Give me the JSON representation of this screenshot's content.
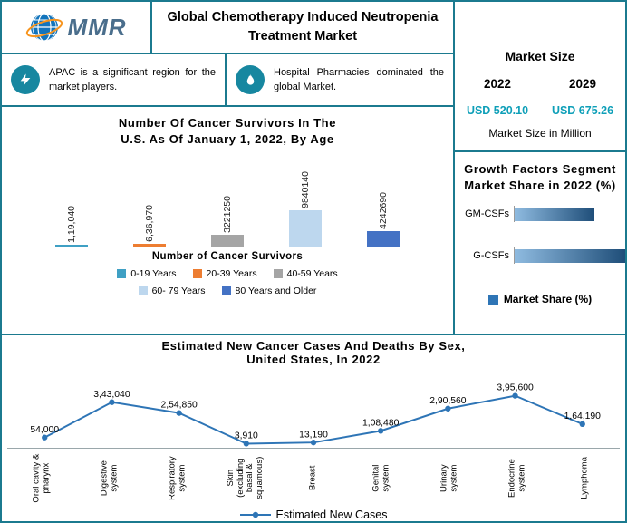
{
  "header": {
    "logo_text": "MMR",
    "title_line1": "Global Chemotherapy Induced Neutropenia",
    "title_line2": "Treatment Market"
  },
  "facts": [
    {
      "icon": "lightning-icon",
      "text": "APAC is a significant region for the market players."
    },
    {
      "icon": "flame-icon",
      "text": "Hospital Pharmacies dominated the global Market."
    }
  ],
  "market_size": {
    "title": "Market Size",
    "year_left": "2022",
    "year_right": "2029",
    "value_left": "USD 520.10",
    "value_right": "USD 675.26",
    "note": "Market Size in Million",
    "accent_color": "#0E9FB8"
  },
  "chart_data": [
    {
      "id": "survivors",
      "type": "bar",
      "title_line1": "Number Of Cancer Survivors In The",
      "title_line2": "U.S. As Of January 1, 2022, By Age",
      "categories": [
        "0-19 Years",
        "20-39 Years",
        "40-59 Years",
        "60- 79 Years",
        "80 Years and Older"
      ],
      "values": [
        119040,
        636970,
        3221250,
        9840140,
        4242690
      ],
      "value_labels": [
        "1,19,040",
        "6,36,970",
        "3221250",
        "9840140",
        "4242690"
      ],
      "colors": [
        "#3FA0C4",
        "#ED7D31",
        "#A5A5A5",
        "#BDD7EE",
        "#4472C4"
      ],
      "xlabel": "Number of Cancer Survivors",
      "legend_position": "bottom"
    },
    {
      "id": "growth",
      "type": "bar",
      "orientation": "horizontal",
      "title_line1": "Growth Factors Segment",
      "title_line2": "Market Share in 2022 (%)",
      "categories": [
        "GM-CSFs",
        "G-CSFs"
      ],
      "values": [
        42,
        58
      ],
      "legend": "Market Share (%)",
      "legend_color": "#2E75B6",
      "bar_gradient": [
        "#8FBBE0",
        "#1F4E79"
      ]
    },
    {
      "id": "cases",
      "type": "line",
      "title_line1": "Estimated New Cancer Cases And Deaths By Sex,",
      "title_line2": "United States, In 2022",
      "categories": [
        "Oral cavity & pharynx",
        "Digestive system",
        "Respiratory system",
        "Skin (excluding basal & squamous)",
        "Breast",
        "Genital system",
        "Urinary system",
        "Endocrine system",
        "Lymphoma"
      ],
      "values": [
        54000,
        343040,
        254850,
        3910,
        13190,
        108480,
        290560,
        395600,
        164190
      ],
      "value_labels": [
        "54,000",
        "3,43,040",
        "2,54,850",
        "3,910",
        "13,190",
        "1,08,480",
        "2,90,560",
        "3,95,600",
        "1,64,190"
      ],
      "legend": "Estimated New Cases",
      "line_color": "#2E75B6"
    }
  ]
}
